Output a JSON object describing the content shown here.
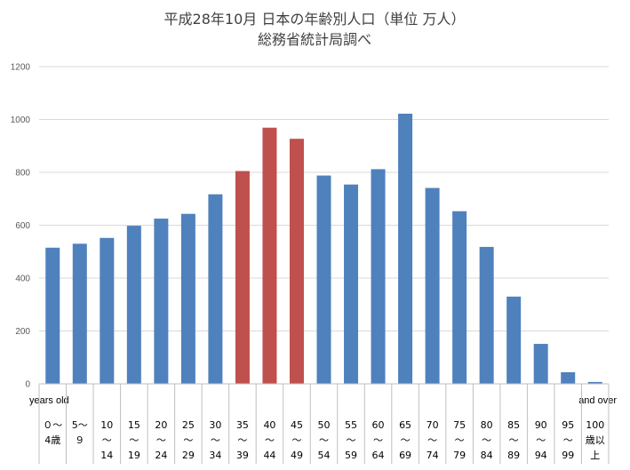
{
  "chart_data": {
    "type": "bar",
    "title_lines": [
      "平成28年10月 日本の年齢別人口（単位 万人）",
      "総務省統計局調べ"
    ],
    "ylim": [
      0,
      1200
    ],
    "yticks": [
      "0",
      "200",
      "400",
      "600",
      "800",
      "1000",
      "1200"
    ],
    "grid": true,
    "left_note": "years old",
    "right_note": "and over",
    "categories": [
      [
        "０～",
        "4歳"
      ],
      [
        "5～",
        "９"
      ],
      [
        "10",
        "～",
        "14"
      ],
      [
        "15",
        "～",
        "19"
      ],
      [
        "20",
        "～",
        "24"
      ],
      [
        "25",
        "～",
        "29"
      ],
      [
        "30",
        "～",
        "34"
      ],
      [
        "35",
        "～",
        "39"
      ],
      [
        "40",
        "～",
        "44"
      ],
      [
        "45",
        "～",
        "49"
      ],
      [
        "50",
        "～",
        "54"
      ],
      [
        "55",
        "～",
        "59"
      ],
      [
        "60",
        "～",
        "64"
      ],
      [
        "65",
        "～",
        "69"
      ],
      [
        "70",
        "～",
        "74"
      ],
      [
        "75",
        "～",
        "79"
      ],
      [
        "80",
        "～",
        "84"
      ],
      [
        "85",
        "～",
        "89"
      ],
      [
        "90",
        "～",
        "94"
      ],
      [
        "95",
        "～",
        "99"
      ],
      [
        "100",
        "歳以",
        "上"
      ]
    ],
    "values": [
      515,
      530,
      552,
      598,
      625,
      643,
      717,
      805,
      969,
      927,
      788,
      754,
      812,
      1022,
      741,
      653,
      518,
      330,
      151,
      44,
      7
    ],
    "colors": {
      "default": "#4F81BD",
      "highlight": "#C0504D",
      "grid": "#D9D9D9",
      "table_line": "#BFBFBF"
    },
    "highlight_indices": [
      7,
      8,
      9
    ]
  }
}
